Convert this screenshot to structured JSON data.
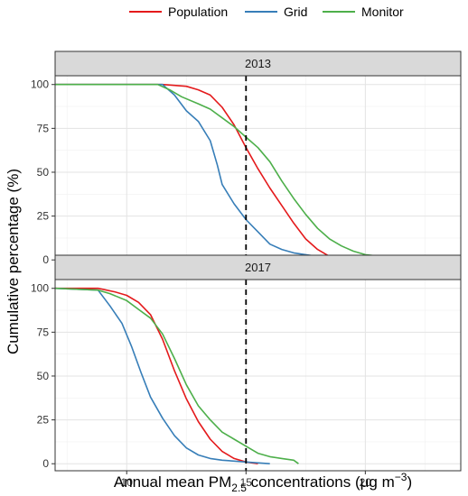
{
  "legend": {
    "items": [
      {
        "name": "Population",
        "color": "#e41a1c"
      },
      {
        "name": "Grid",
        "color": "#377eb8"
      },
      {
        "name": "Monitor",
        "color": "#4daf4a"
      }
    ]
  },
  "axes": {
    "xlabel_main": "Annual mean PM",
    "xlabel_sub": "2.5",
    "xlabel_tail": " concentrations (μg m",
    "xlabel_sup": "−3",
    "xlabel_close": ")",
    "ylabel": "Cumulative percentage (%)"
  },
  "chart_data": {
    "type": "line",
    "xlim": [
      7,
      24
    ],
    "ylim": [
      -4,
      105
    ],
    "x_ticks": [
      10,
      15,
      20
    ],
    "y_ticks": [
      0,
      25,
      50,
      75,
      100
    ],
    "grid": true,
    "reference_line_x": 15,
    "legend_position": "top",
    "panels": [
      {
        "title": "2013",
        "series": [
          {
            "name": "Population",
            "color": "#e41a1c",
            "x": [
              7,
              11.5,
              12,
              12.5,
              13,
              13.5,
              14,
              14.5,
              15,
              15.5,
              16,
              16.5,
              17,
              17.5,
              18,
              18.5,
              19
            ],
            "y": [
              100,
              100,
              99.5,
              99,
              97,
              94,
              87,
              77,
              64,
              52,
              41,
              31,
              21,
              12,
              6,
              2,
              0
            ]
          },
          {
            "name": "Grid",
            "color": "#377eb8",
            "x": [
              7,
              11.5,
              12,
              12.5,
              13,
              13.5,
              13.8,
              14,
              14.5,
              15,
              15.5,
              16,
              16.5,
              17,
              17.5,
              18,
              19,
              20,
              21,
              23.5
            ],
            "y": [
              100,
              100,
              94,
              85,
              79,
              68,
              54,
              43,
              32,
              23,
              16,
              9,
              6,
              4,
              3,
              2,
              1,
              0.5,
              0.2,
              0
            ]
          },
          {
            "name": "Monitor",
            "color": "#4daf4a",
            "x": [
              7,
              11.3,
              11.8,
              12.3,
              13,
              13.5,
              14,
              14.5,
              15,
              15.5,
              16,
              16.5,
              17,
              17.5,
              18,
              18.5,
              19,
              19.5,
              20,
              21,
              22,
              23.5
            ],
            "y": [
              100,
              100,
              97,
              93,
              89,
              86,
              81,
              76,
              70,
              64,
              56,
              45,
              35,
              26,
              18,
              12,
              8,
              5,
              3,
              1.5,
              0.5,
              0
            ]
          }
        ]
      },
      {
        "title": "2017",
        "series": [
          {
            "name": "Population",
            "color": "#e41a1c",
            "x": [
              7,
              8.8,
              9.5,
              10,
              10.5,
              11,
              11.5,
              12,
              12.5,
              13,
              13.5,
              14,
              14.5,
              15,
              15.5
            ],
            "y": [
              100,
              100,
              98,
              96,
              92,
              85,
              71,
              53,
              37,
              24,
              14,
              7,
              3,
              1,
              0
            ]
          },
          {
            "name": "Grid",
            "color": "#377eb8",
            "x": [
              7,
              8.8,
              9.3,
              9.8,
              10.2,
              10.6,
              11,
              11.5,
              12,
              12.5,
              13,
              13.5,
              14,
              15,
              16
            ],
            "y": [
              100,
              99,
              90,
              80,
              67,
              52,
              38,
              26,
              16,
              9,
              5,
              3,
              2,
              1,
              0
            ]
          },
          {
            "name": "Monitor",
            "color": "#4daf4a",
            "x": [
              7,
              8.8,
              9.3,
              10,
              10.5,
              11,
              11.5,
              12,
              12.5,
              13,
              13.5,
              14,
              14.5,
              15,
              15.5,
              16,
              16.5,
              17,
              17.2
            ],
            "y": [
              100,
              99,
              97,
              93,
              88,
              83,
              74,
              60,
              45,
              33,
              25,
              18,
              14,
              10,
              6,
              4,
              3,
              2,
              0
            ]
          }
        ]
      }
    ]
  }
}
